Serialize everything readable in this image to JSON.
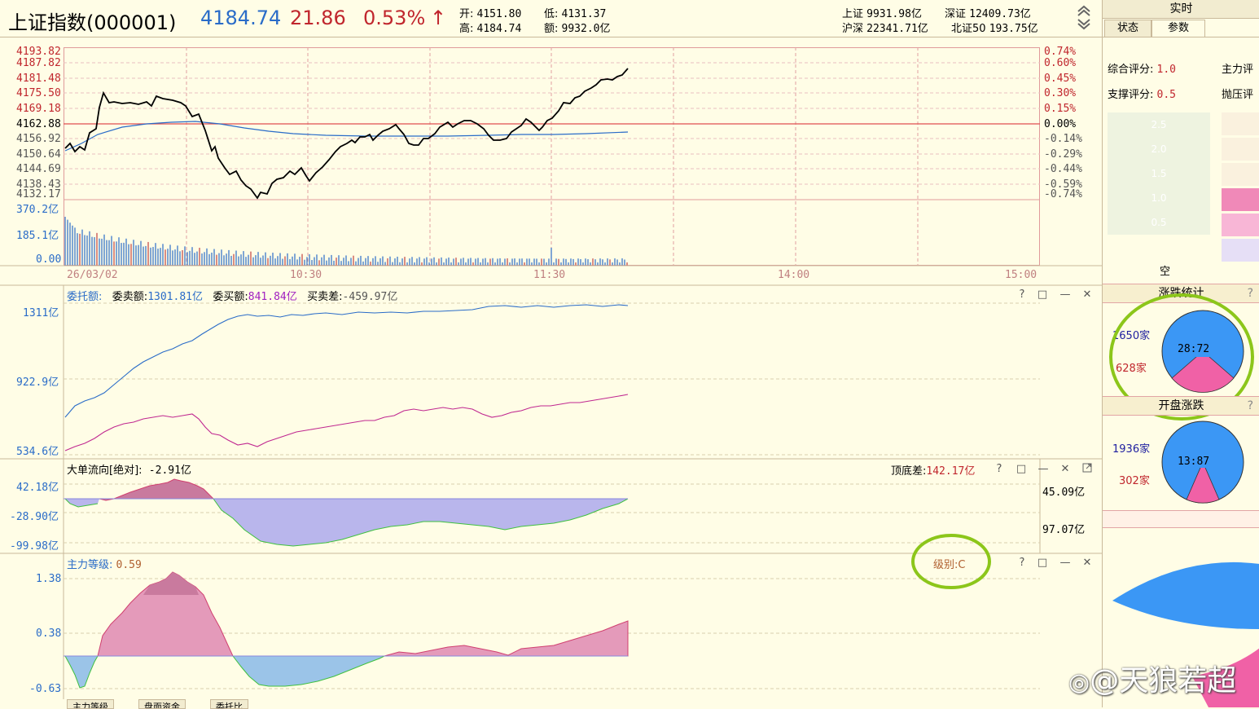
{
  "header": {
    "title": "上证指数(000001)",
    "price": "4184.74",
    "change": "21.86",
    "change_pct": "0.53%",
    "arrow": "↑",
    "open_label": "开:",
    "open": "4151.80",
    "low_label": "低:",
    "low": "4131.37",
    "high_label": "高:",
    "high": "4184.74",
    "amount_label": "额:",
    "amount": "9932.0亿",
    "sh_label": "上证",
    "sh": "9931.98亿",
    "sz_label": "深证",
    "sz": "12409.73亿",
    "hs_label": "沪深",
    "hs": "22341.71亿",
    "bz_label": "北证50",
    "bz": "193.75亿"
  },
  "price_chart": {
    "left_ticks": [
      "4193.82",
      "4187.82",
      "4181.48",
      "4175.50",
      "4169.18",
      "4162.88",
      "4156.92",
      "4150.64",
      "4144.69",
      "4138.43",
      "4132.17"
    ],
    "right_ticks": [
      "0.74%",
      "0.60%",
      "0.45%",
      "0.30%",
      "0.15%",
      "0.00%",
      "-0.14%",
      "-0.29%",
      "-0.44%",
      "-0.59%",
      "-0.74%"
    ],
    "vol_ticks": [
      "370.2亿",
      "185.1亿",
      "0.00"
    ],
    "time_labels": [
      "26/03/02",
      "10:30",
      "11:30",
      "14:00",
      "15:00"
    ]
  },
  "order_panel": {
    "title": "委托额:",
    "sell_label": "委卖额:",
    "sell": "1301.81亿",
    "buy_label": "委买额:",
    "buy": "841.84亿",
    "diff_label": "买卖差:",
    "diff": "-459.97亿",
    "ticks": [
      "1311亿",
      "922.9亿",
      "534.6亿"
    ]
  },
  "flow_panel": {
    "title": "大单流向[绝对]:",
    "value": "-2.91亿",
    "peak_label": "顶底差:",
    "peak": "142.17亿",
    "ticks": [
      "42.18亿",
      "-28.90亿",
      "-99.98亿"
    ],
    "right_vals": [
      "45.09亿",
      "97.07亿"
    ]
  },
  "level_panel": {
    "title": "主力等级:",
    "value": "0.59",
    "grade": "级别:C",
    "ticks": [
      "1.38",
      "0.38",
      "-0.63"
    ]
  },
  "window_buttons": {
    "help": "?",
    "restore": "□",
    "min": "—",
    "close": "✕"
  },
  "right_panel": {
    "top_label": "实时",
    "tab_status": "状态",
    "tab_params": "参数",
    "score_label": "综合评分:",
    "score": "1.0",
    "main_label": "主力评",
    "support_label": "支撑评分:",
    "support": "0.5",
    "pressure_label": "抛压评",
    "scale": [
      "2.5",
      "2.0",
      "1.5",
      "1.0",
      "0.5"
    ],
    "empty_label": "空",
    "updown_title": "涨跌统计",
    "up_count": "1650家",
    "down_count": "628家",
    "updown_ratio": "28:72",
    "open_title": "开盘涨跌",
    "open_up": "1936家",
    "open_down": "302家",
    "open_ratio": "13:87"
  },
  "bottom_tabs": [
    "主力等级",
    "盘面资金",
    "委托比"
  ],
  "watermark": "@天狼若超",
  "colors": {
    "up": "#c0262d",
    "down": "#2a6cc8",
    "pie_blue": "#3b97f5",
    "pie_pink": "#f061a6",
    "highlight": "#8cc61a"
  }
}
